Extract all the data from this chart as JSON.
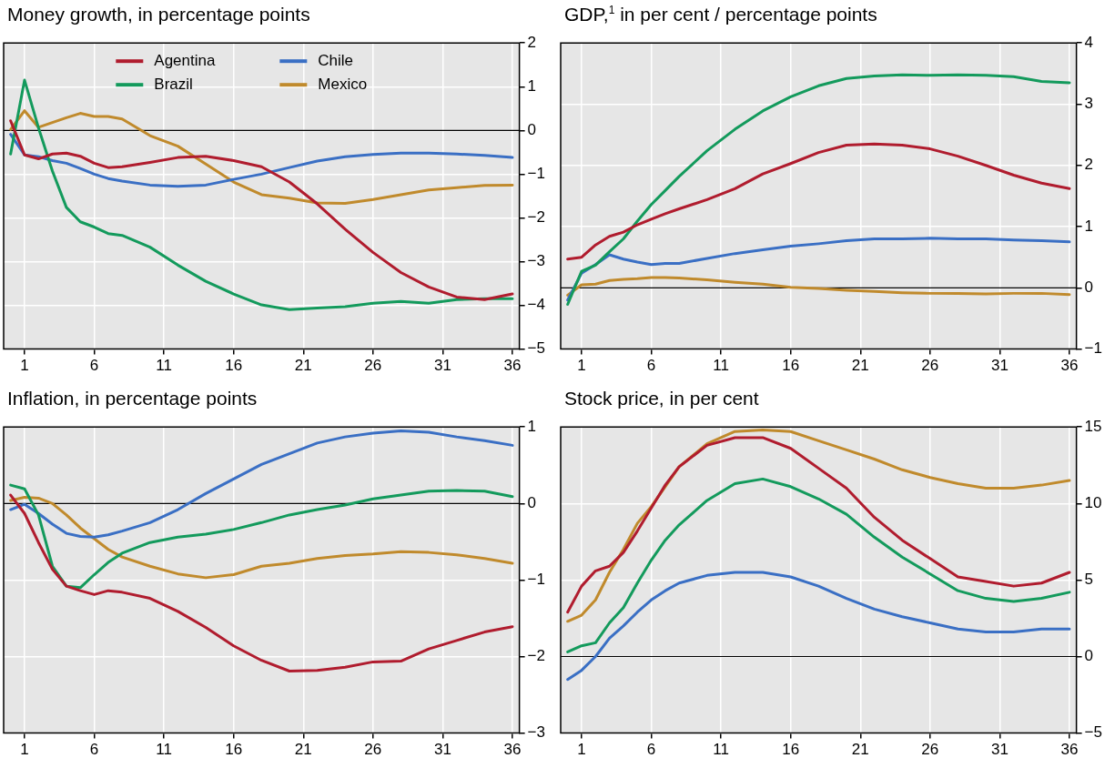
{
  "chart_data": [
    {
      "type": "line",
      "title": "Money growth, in percentage points",
      "x": [
        0,
        1,
        2,
        3,
        4,
        5,
        6,
        7,
        8,
        10,
        12,
        14,
        16,
        18,
        20,
        22,
        24,
        26,
        28,
        30,
        32,
        34,
        36
      ],
      "xlim": [
        -0.5,
        36.5
      ],
      "xticks": [
        1,
        6,
        11,
        16,
        21,
        26,
        31,
        36
      ],
      "ylim": [
        -5,
        2
      ],
      "yticks": [
        -5,
        -4,
        -3,
        -2,
        -1,
        0,
        1,
        2
      ],
      "grid": true,
      "legend": "top",
      "ref_lines": [
        {
          "axis": "y",
          "value": 0,
          "color": "#000000"
        }
      ],
      "series": [
        {
          "name": "Agentina",
          "color": "#b01c2e",
          "values": [
            0.22,
            -0.56,
            -0.65,
            -0.54,
            -0.52,
            -0.59,
            -0.75,
            -0.85,
            -0.83,
            -0.73,
            -0.62,
            -0.59,
            -0.69,
            -0.83,
            -1.18,
            -1.68,
            -2.26,
            -2.79,
            -3.25,
            -3.58,
            -3.81,
            -3.87,
            -3.74
          ]
        },
        {
          "name": "Brazil",
          "color": "#139a5c",
          "values": [
            -0.54,
            1.15,
            0.06,
            -0.93,
            -1.76,
            -2.09,
            -2.21,
            -2.36,
            -2.4,
            -2.67,
            -3.08,
            -3.45,
            -3.74,
            -3.99,
            -4.1,
            -4.06,
            -4.03,
            -3.95,
            -3.91,
            -3.95,
            -3.87,
            -3.85,
            -3.85
          ]
        },
        {
          "name": "Chile",
          "color": "#3a6fc4",
          "values": [
            -0.09,
            -0.56,
            -0.6,
            -0.69,
            -0.75,
            -0.87,
            -1.0,
            -1.1,
            -1.16,
            -1.25,
            -1.28,
            -1.25,
            -1.12,
            -1.0,
            -0.85,
            -0.7,
            -0.6,
            -0.55,
            -0.52,
            -0.52,
            -0.54,
            -0.57,
            -0.62
          ]
        },
        {
          "name": "Mexico",
          "color": "#c08a2c",
          "values": [
            0.02,
            0.45,
            0.07,
            0.18,
            0.29,
            0.39,
            0.32,
            0.32,
            0.26,
            -0.12,
            -0.36,
            -0.77,
            -1.18,
            -1.47,
            -1.55,
            -1.66,
            -1.67,
            -1.58,
            -1.47,
            -1.36,
            -1.31,
            -1.26,
            -1.25
          ]
        }
      ]
    },
    {
      "type": "line",
      "title": "GDP,$^{1}$ in per cent / percentage points",
      "x": [
        0,
        1,
        2,
        3,
        4,
        5,
        6,
        7,
        8,
        10,
        12,
        14,
        16,
        18,
        20,
        22,
        24,
        26,
        28,
        30,
        32,
        34,
        36
      ],
      "xlim": [
        -0.5,
        36.5
      ],
      "xticks": [
        1,
        6,
        11,
        16,
        21,
        26,
        31,
        36
      ],
      "ylim": [
        -1,
        4
      ],
      "yticks": [
        -1,
        0,
        1,
        2,
        3,
        4
      ],
      "grid": true,
      "ref_lines": [
        {
          "axis": "y",
          "value": 0,
          "color": "#000000"
        }
      ],
      "series": [
        {
          "color": "#b01c2e",
          "values": [
            0.47,
            0.5,
            0.7,
            0.84,
            0.91,
            1.03,
            1.12,
            1.21,
            1.29,
            1.44,
            1.62,
            1.86,
            2.03,
            2.21,
            2.33,
            2.35,
            2.33,
            2.27,
            2.15,
            2.0,
            1.84,
            1.71,
            1.62
          ]
        },
        {
          "color": "#139a5c",
          "values": [
            -0.27,
            0.27,
            0.37,
            0.59,
            0.8,
            1.09,
            1.36,
            1.59,
            1.82,
            2.24,
            2.59,
            2.89,
            3.12,
            3.3,
            3.42,
            3.46,
            3.48,
            3.47,
            3.48,
            3.47,
            3.45,
            3.37,
            3.35
          ]
        },
        {
          "color": "#3a6fc4",
          "values": [
            -0.2,
            0.24,
            0.38,
            0.54,
            0.47,
            0.42,
            0.38,
            0.4,
            0.4,
            0.48,
            0.56,
            0.62,
            0.68,
            0.72,
            0.77,
            0.8,
            0.8,
            0.81,
            0.8,
            0.8,
            0.78,
            0.77,
            0.75
          ]
        },
        {
          "color": "#c08a2c",
          "values": [
            -0.12,
            0.05,
            0.06,
            0.12,
            0.14,
            0.15,
            0.17,
            0.17,
            0.16,
            0.13,
            0.09,
            0.06,
            0.01,
            -0.01,
            -0.04,
            -0.06,
            -0.08,
            -0.09,
            -0.09,
            -0.1,
            -0.09,
            -0.09,
            -0.11
          ]
        }
      ]
    },
    {
      "type": "line",
      "title": "Inflation, in percentage points",
      "x": [
        0,
        1,
        2,
        3,
        4,
        5,
        6,
        7,
        8,
        10,
        12,
        14,
        16,
        18,
        20,
        22,
        24,
        26,
        28,
        30,
        32,
        34,
        36
      ],
      "xlim": [
        -0.5,
        36.5
      ],
      "xticks": [
        1,
        6,
        11,
        16,
        21,
        26,
        31,
        36
      ],
      "ylim": [
        -3,
        1
      ],
      "yticks": [
        -3,
        -2,
        -1,
        0,
        1
      ],
      "grid": true,
      "ref_lines": [
        {
          "axis": "y",
          "value": 0,
          "color": "#000000"
        }
      ],
      "series": [
        {
          "color": "#b01c2e",
          "values": [
            0.11,
            -0.13,
            -0.51,
            -0.86,
            -1.08,
            -1.14,
            -1.19,
            -1.14,
            -1.16,
            -1.24,
            -1.41,
            -1.62,
            -1.86,
            -2.05,
            -2.19,
            -2.18,
            -2.14,
            -2.07,
            -2.06,
            -1.9,
            -1.79,
            -1.68,
            -1.61
          ]
        },
        {
          "color": "#139a5c",
          "values": [
            0.24,
            0.19,
            -0.15,
            -0.82,
            -1.08,
            -1.1,
            -0.93,
            -0.77,
            -0.65,
            -0.51,
            -0.44,
            -0.4,
            -0.34,
            -0.25,
            -0.15,
            -0.08,
            -0.02,
            0.06,
            0.11,
            0.16,
            0.17,
            0.16,
            0.09
          ]
        },
        {
          "color": "#3a6fc4",
          "values": [
            -0.08,
            -0.01,
            -0.13,
            -0.27,
            -0.39,
            -0.43,
            -0.44,
            -0.41,
            -0.36,
            -0.25,
            -0.08,
            0.13,
            0.32,
            0.51,
            0.65,
            0.79,
            0.87,
            0.92,
            0.95,
            0.93,
            0.87,
            0.82,
            0.76
          ]
        },
        {
          "color": "#c08a2c",
          "values": [
            0.04,
            0.08,
            0.07,
            0,
            -0.15,
            -0.32,
            -0.46,
            -0.6,
            -0.7,
            -0.82,
            -0.92,
            -0.97,
            -0.93,
            -0.82,
            -0.78,
            -0.72,
            -0.68,
            -0.66,
            -0.63,
            -0.64,
            -0.67,
            -0.72,
            -0.78
          ]
        }
      ]
    },
    {
      "type": "line",
      "title": "Stock price, in per cent",
      "x": [
        0,
        1,
        2,
        3,
        4,
        5,
        6,
        7,
        8,
        10,
        12,
        14,
        16,
        18,
        20,
        22,
        24,
        26,
        28,
        30,
        32,
        34,
        36
      ],
      "xlim": [
        -0.5,
        36.5
      ],
      "xticks": [
        1,
        6,
        11,
        16,
        21,
        26,
        31,
        36
      ],
      "ylim": [
        -5,
        15
      ],
      "yticks": [
        -5,
        0,
        5,
        10,
        15
      ],
      "grid": true,
      "ref_lines": [
        {
          "axis": "y",
          "value": 0,
          "color": "#000000"
        }
      ],
      "series": [
        {
          "color": "#b01c2e",
          "values": [
            2.9,
            4.6,
            5.6,
            5.9,
            6.8,
            8.2,
            9.7,
            11.2,
            12.4,
            13.8,
            14.3,
            14.3,
            13.6,
            12.3,
            11.0,
            9.1,
            7.6,
            6.4,
            5.2,
            4.9,
            4.6,
            4.8,
            5.5
          ]
        },
        {
          "color": "#139a5c",
          "values": [
            0.3,
            0.7,
            0.9,
            2.2,
            3.2,
            4.8,
            6.3,
            7.6,
            8.6,
            10.2,
            11.3,
            11.6,
            11.1,
            10.3,
            9.3,
            7.8,
            6.5,
            5.4,
            4.3,
            3.8,
            3.6,
            3.8,
            4.2
          ]
        },
        {
          "color": "#3a6fc4",
          "values": [
            -1.5,
            -0.9,
            0,
            1.2,
            2.0,
            2.9,
            3.7,
            4.3,
            4.8,
            5.3,
            5.5,
            5.5,
            5.2,
            4.6,
            3.8,
            3.1,
            2.6,
            2.2,
            1.8,
            1.6,
            1.6,
            1.8,
            1.8
          ]
        },
        {
          "color": "#c08a2c",
          "values": [
            2.3,
            2.7,
            3.7,
            5.5,
            7.0,
            8.7,
            9.8,
            11.1,
            12.4,
            13.9,
            14.7,
            14.8,
            14.7,
            14.1,
            13.5,
            12.9,
            12.2,
            11.7,
            11.3,
            11.0,
            11.0,
            11.2,
            11.5
          ]
        }
      ]
    }
  ]
}
